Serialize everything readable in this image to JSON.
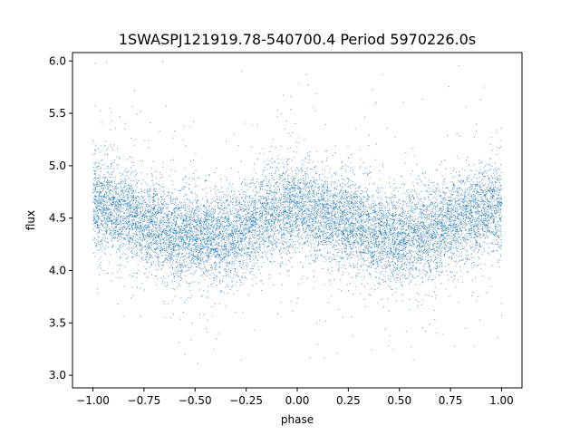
{
  "chart_data": {
    "type": "scatter",
    "title": "1SWASPJ121919.78-540700.4 Period 5970226.0s",
    "xlabel": "phase",
    "ylabel": "flux",
    "xlim": [
      -1.1,
      1.1
    ],
    "ylim": [
      2.88,
      6.08
    ],
    "xticks": [
      -1.0,
      -0.75,
      -0.5,
      -0.25,
      0.0,
      0.25,
      0.5,
      0.75,
      1.0
    ],
    "xtick_labels": [
      "−1.00",
      "−0.75",
      "−0.50",
      "−0.25",
      "0.00",
      "0.25",
      "0.50",
      "0.75",
      "1.00"
    ],
    "yticks": [
      3.0,
      3.5,
      4.0,
      4.5,
      5.0,
      5.5,
      6.0
    ],
    "ytick_labels": [
      "3.0",
      "3.5",
      "4.0",
      "4.5",
      "5.0",
      "5.5",
      "6.0"
    ],
    "grid": false,
    "marker_color": "#1f77b4",
    "series": [
      {
        "x_range": [
          -1.0,
          1.0
        ],
        "point_count": 12000,
        "trend": {
          "x": [
            -1.0,
            -0.9,
            -0.75,
            -0.6,
            -0.5,
            -0.4,
            -0.3,
            -0.2,
            -0.1,
            0.0,
            0.1,
            0.25,
            0.4,
            0.5,
            0.6,
            0.75,
            0.85,
            1.0
          ],
          "y": [
            4.65,
            4.6,
            4.45,
            4.35,
            4.32,
            4.32,
            4.35,
            4.45,
            4.55,
            4.62,
            4.55,
            4.45,
            4.35,
            4.3,
            4.35,
            4.45,
            4.55,
            4.62
          ]
        },
        "scatter_sd": 0.22,
        "y_min": 3.02,
        "y_max": 6.0
      }
    ]
  }
}
